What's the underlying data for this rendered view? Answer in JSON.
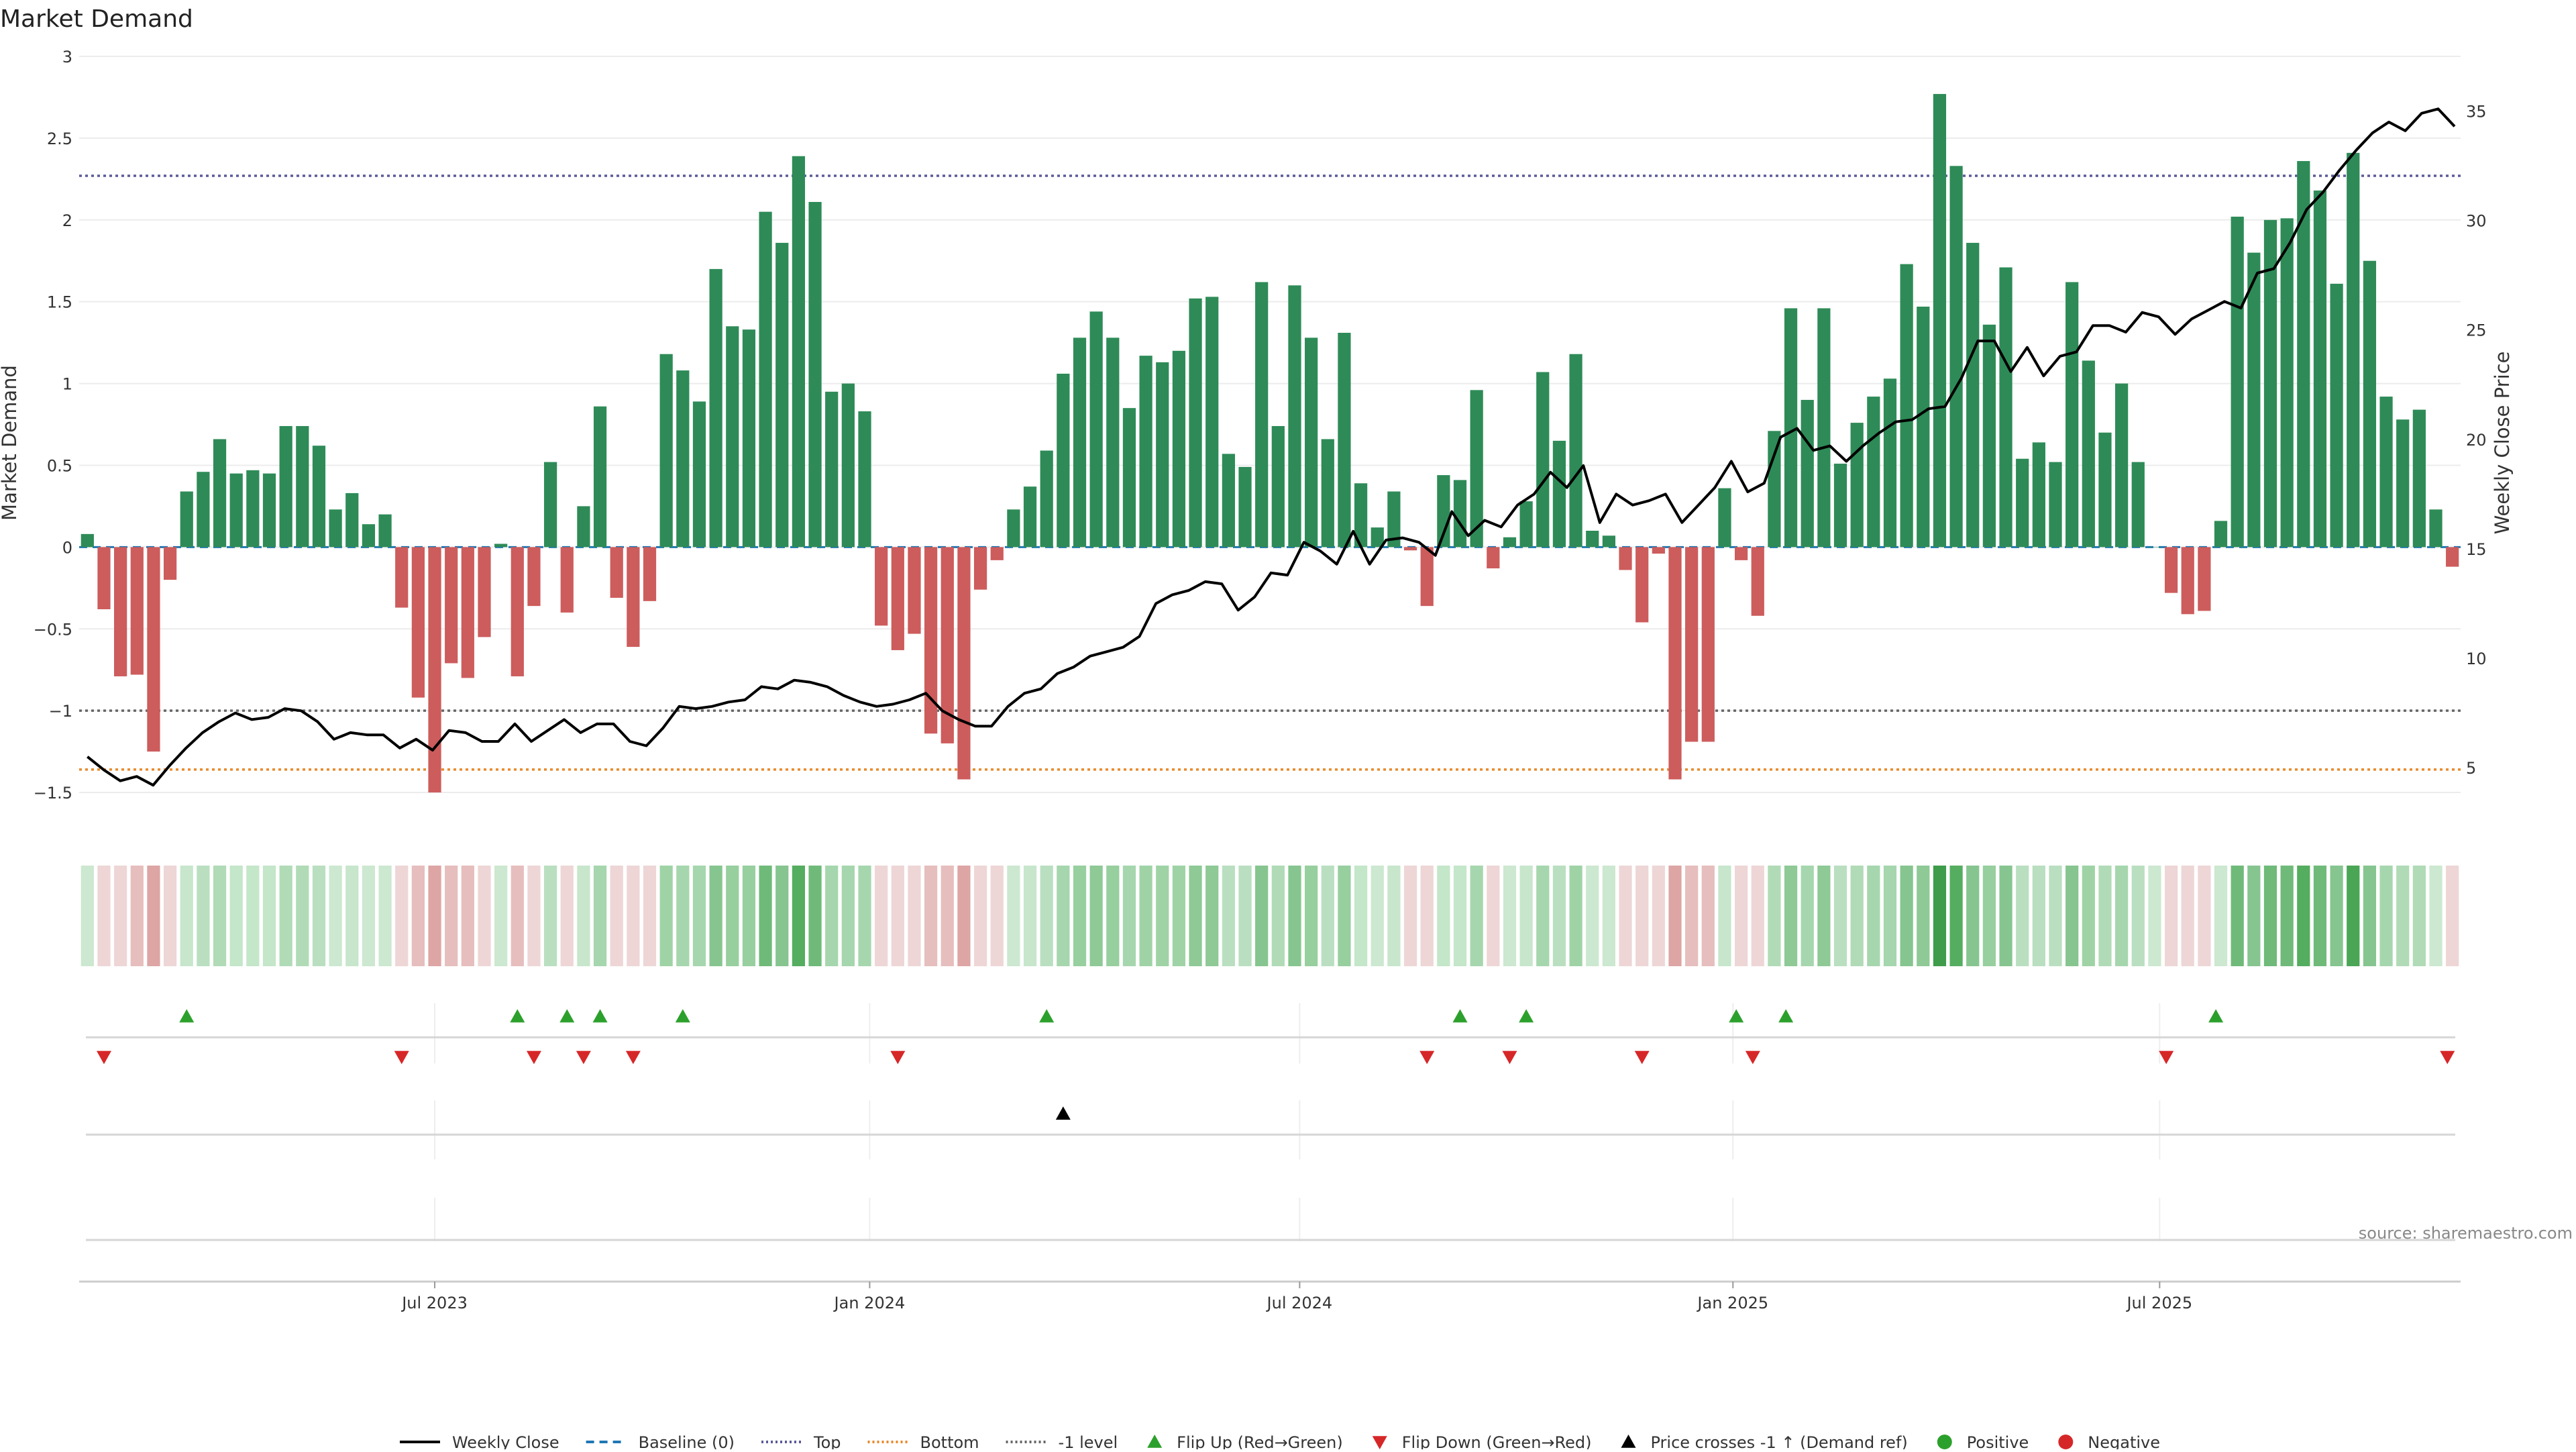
{
  "chart_data": {
    "type": "bar",
    "title": "Market Demand",
    "ylabel": "Market Demand",
    "y2label": "Weekly Close Price",
    "ylim": [
      -1.75,
      3.0
    ],
    "y2lim": [
      2.0,
      37.5
    ],
    "yticks": [
      3,
      2.5,
      2,
      1.5,
      1,
      0.5,
      0,
      -0.5,
      -1,
      -1.5
    ],
    "ytick_labels": [
      "3",
      "2.5",
      "2",
      "1.5",
      "1",
      "0.5",
      "0",
      "−0.5",
      "−1",
      "−1.5"
    ],
    "y2ticks": [
      35,
      30,
      25,
      20,
      15,
      10,
      5
    ],
    "y2tick_labels": [
      "35",
      "30",
      "25",
      "20",
      "15",
      "10",
      "5"
    ],
    "reference_lines": {
      "top": 2.27,
      "bottom": -1.36,
      "minus_one": -1.0
    },
    "x_range": [
      0,
      144
    ],
    "x_ticks": [
      {
        "label": "Jul 2023",
        "x": 21.5
      },
      {
        "label": "Jan 2024",
        "x": 47.8
      },
      {
        "label": "Jul 2024",
        "x": 73.8
      },
      {
        "label": "Jan 2025",
        "x": 100.0
      },
      {
        "label": "Jul 2025",
        "x": 125.8
      }
    ],
    "series": [
      {
        "name": "Market Demand",
        "kind": "bar",
        "values": [
          0.08,
          -0.38,
          -0.79,
          -0.78,
          -1.25,
          -0.2,
          0.34,
          0.46,
          0.66,
          0.45,
          0.47,
          0.45,
          0.74,
          0.74,
          0.62,
          0.23,
          0.33,
          0.14,
          0.2,
          -0.37,
          -0.92,
          -1.5,
          -0.71,
          -0.8,
          -0.55,
          0.02,
          -0.79,
          -0.36,
          0.52,
          -0.4,
          0.25,
          0.86,
          -0.31,
          -0.61,
          -0.33,
          1.18,
          1.08,
          0.89,
          1.7,
          1.35,
          1.33,
          2.05,
          1.86,
          2.39,
          2.11,
          0.95,
          1.0,
          0.83,
          -0.48,
          -0.63,
          -0.53,
          -1.14,
          -1.2,
          -1.42,
          -0.26,
          -0.08,
          0.23,
          0.37,
          0.59,
          1.06,
          1.28,
          1.44,
          1.28,
          0.85,
          1.17,
          1.13,
          1.2,
          1.52,
          1.53,
          0.57,
          0.49,
          1.62,
          0.74,
          1.6,
          1.28,
          0.66,
          1.31,
          0.39,
          0.12,
          0.34,
          -0.02,
          -0.36,
          0.44,
          0.41,
          0.96,
          -0.13,
          0.06,
          0.28,
          1.07,
          0.65,
          1.18,
          0.1,
          0.07,
          -0.14,
          -0.46,
          -0.04,
          -1.42,
          -1.19,
          -1.19,
          0.36,
          -0.08,
          -0.42,
          0.71,
          1.46,
          0.9,
          1.46,
          0.51,
          0.76,
          0.92,
          1.03,
          1.73,
          1.47,
          2.77,
          2.33,
          1.86,
          1.36,
          1.71,
          0.54,
          0.64,
          0.52,
          1.62,
          1.14,
          0.7,
          1.0,
          0.52,
          0.0,
          -0.28,
          -0.41,
          -0.39,
          0.16,
          2.02,
          1.8,
          2.0,
          2.01,
          2.36,
          2.18,
          1.61,
          2.41,
          1.75,
          0.92,
          0.78,
          0.84,
          0.23,
          -0.12
        ]
      },
      {
        "name": "Weekly Close",
        "kind": "line",
        "axis": "right",
        "x_start": 0.5,
        "x_step": 0.994,
        "values": [
          5.5,
          4.9,
          4.4,
          4.6,
          4.2,
          5.1,
          5.9,
          6.6,
          7.1,
          7.5,
          7.2,
          7.3,
          7.7,
          7.6,
          7.1,
          6.3,
          6.6,
          6.5,
          6.5,
          5.9,
          6.3,
          5.8,
          6.7,
          6.6,
          6.2,
          6.2,
          7.0,
          6.2,
          6.7,
          7.2,
          6.6,
          7.0,
          7.0,
          6.2,
          6.0,
          6.8,
          7.8,
          7.7,
          7.8,
          8.0,
          8.1,
          8.7,
          8.6,
          9.0,
          8.9,
          8.7,
          8.3,
          8.0,
          7.8,
          7.9,
          8.1,
          8.4,
          7.6,
          7.2,
          6.9,
          6.9,
          7.8,
          8.4,
          8.6,
          9.3,
          9.6,
          10.1,
          10.3,
          10.5,
          11.0,
          12.5,
          12.9,
          13.1,
          13.5,
          13.4,
          12.2,
          12.8,
          13.9,
          13.8,
          15.3,
          14.9,
          14.3,
          15.8,
          14.3,
          15.4,
          15.5,
          15.3,
          14.7,
          16.7,
          15.6,
          16.3,
          16.0,
          17.0,
          17.5,
          18.5,
          17.8,
          18.8,
          16.2,
          17.5,
          17.0,
          17.2,
          17.5,
          16.2,
          17.0,
          17.8,
          19.0,
          17.6,
          18.0,
          20.1,
          20.5,
          19.5,
          19.7,
          19.0,
          19.7,
          20.3,
          20.8,
          20.9,
          21.4,
          21.5,
          22.8,
          24.5,
          24.5,
          23.1,
          24.2,
          22.9,
          23.8,
          24.0,
          25.2,
          25.2,
          24.9,
          25.8,
          25.6,
          24.8,
          25.5,
          25.9,
          26.3,
          26.0,
          27.6,
          27.8,
          29.0,
          30.5,
          31.3,
          32.3,
          33.2,
          34.0,
          34.5,
          34.1,
          34.9,
          35.1,
          34.3
        ]
      }
    ],
    "regime_strip": {
      "colors": [
        "#cce8d0",
        "#eed6d6",
        "#eed6d6",
        "#e6bebd",
        "#dda5a4",
        "#eed6d6",
        "#c7e6cc",
        "#b9dfc0",
        "#b0dbb6",
        "#c4e6c9",
        "#c4e6c9",
        "#c4e6c9",
        "#b0dbb6",
        "#b0dbb6",
        "#b9dfc0",
        "#cce8d0",
        "#c7e6cc",
        "#cce8d0",
        "#cce8d0",
        "#eed6d6",
        "#e6bebd",
        "#dda5a4",
        "#e6bebd",
        "#e6bebd",
        "#eed6d6",
        "#cce8d0",
        "#e6bebd",
        "#eed6d6",
        "#b9dfc0",
        "#eed6d6",
        "#c7e6cc",
        "#a6d6ad",
        "#eed6d6",
        "#eed6d6",
        "#eed6d6",
        "#9fd3a6",
        "#a6d6ad",
        "#a6d6ad",
        "#86c58f",
        "#97cf9e",
        "#97cf9e",
        "#6fba79",
        "#86c58f",
        "#55ad60",
        "#6fba79",
        "#a6d6ad",
        "#a6d6ad",
        "#a6d6ad",
        "#eed6d6",
        "#eed6d6",
        "#eed6d6",
        "#e6bebd",
        "#e6bebd",
        "#dda5a4",
        "#eed6d6",
        "#eed6d6",
        "#cce8d0",
        "#c7e6cc",
        "#b9dfc0",
        "#a6d6ad",
        "#97cf9e",
        "#8ec996",
        "#97cf9e",
        "#a6d6ad",
        "#9fd3a6",
        "#9fd3a6",
        "#9fd3a6",
        "#8ec996",
        "#8ec996",
        "#b9dfc0",
        "#b9dfc0",
        "#86c58f",
        "#b0dbb6",
        "#86c58f",
        "#97cf9e",
        "#b9dfc0",
        "#97cf9e",
        "#c4e6c9",
        "#cce8d0",
        "#c7e6cc",
        "#eed6d6",
        "#eed6d6",
        "#c4e6c9",
        "#c4e6c9",
        "#a6d6ad",
        "#eed6d6",
        "#cce8d0",
        "#c7e6cc",
        "#a6d6ad",
        "#b9dfc0",
        "#9fd3a6",
        "#cce8d0",
        "#cce8d0",
        "#eed6d6",
        "#eed6d6",
        "#eed6d6",
        "#dda5a4",
        "#e6bebd",
        "#e6bebd",
        "#c7e6cc",
        "#eed6d6",
        "#eed6d6",
        "#b0dbb6",
        "#8ec996",
        "#a6d6ad",
        "#8ec996",
        "#b9dfc0",
        "#b0dbb6",
        "#a6d6ad",
        "#a6d6ad",
        "#86c58f",
        "#8ec996",
        "#3f9c4b",
        "#55ad60",
        "#86c58f",
        "#97cf9e",
        "#86c58f",
        "#b9dfc0",
        "#b9dfc0",
        "#b9dfc0",
        "#86c58f",
        "#9fd3a6",
        "#b0dbb6",
        "#a6d6ad",
        "#b9dfc0",
        "#cce8d0",
        "#eed6d6",
        "#eed6d6",
        "#eed6d6",
        "#cce8d0",
        "#6fba79",
        "#86c58f",
        "#6fba79",
        "#6fba79",
        "#55ad60",
        "#6fba79",
        "#86c58f",
        "#4aa655",
        "#86c58f",
        "#a6d6ad",
        "#b0dbb6",
        "#b0dbb6",
        "#cce8d0",
        "#eed6d6"
      ]
    },
    "flip_up_x": [
      6.5,
      26.5,
      29.5,
      31.5,
      36.5,
      58.5,
      83.5,
      87.5,
      100.2,
      103.2,
      129.2
    ],
    "flip_down_x": [
      1.5,
      19.5,
      27.5,
      30.5,
      33.5,
      49.5,
      81.5,
      86.5,
      94.5,
      101.2,
      126.2,
      143.2
    ],
    "price_cross_x": [
      59.5
    ],
    "legend": [
      {
        "label": "Weekly Close",
        "kind": "line",
        "color": "#000000",
        "dash": ""
      },
      {
        "label": "Baseline (0)",
        "kind": "line",
        "color": "#1f77b4",
        "dash": "12,8"
      },
      {
        "label": "Top",
        "kind": "line",
        "color": "#5a5a9a",
        "dash": "3,4"
      },
      {
        "label": "Bottom",
        "kind": "line",
        "color": "#e8892b",
        "dash": "3,4"
      },
      {
        "label": "-1 level",
        "kind": "line",
        "color": "#666666",
        "dash": "3,4"
      },
      {
        "label": "Flip Up (Red→Green)",
        "kind": "tri-up",
        "color": "#2ca02c"
      },
      {
        "label": "Flip Down (Green→Red)",
        "kind": "tri-down",
        "color": "#d62728"
      },
      {
        "label": "Price crosses -1 ↑ (Demand ref)",
        "kind": "tri-up",
        "color": "#000000"
      },
      {
        "label": "Positive",
        "kind": "dot",
        "color": "#2ca02c"
      },
      {
        "label": "Negative",
        "kind": "dot",
        "color": "#d62728"
      }
    ],
    "source": "source: sharemaestro.com",
    "colors": {
      "positive_bar": "#2e8b57",
      "negative_bar": "#cd5c5c",
      "price_line": "#000000",
      "baseline": "#1f77b4",
      "top_line": "#5a5a9a",
      "bottom_line": "#e8892b",
      "minus_one_line": "#666666",
      "flip_up": "#2ca02c",
      "flip_down": "#d62728",
      "cross": "#000000"
    }
  }
}
